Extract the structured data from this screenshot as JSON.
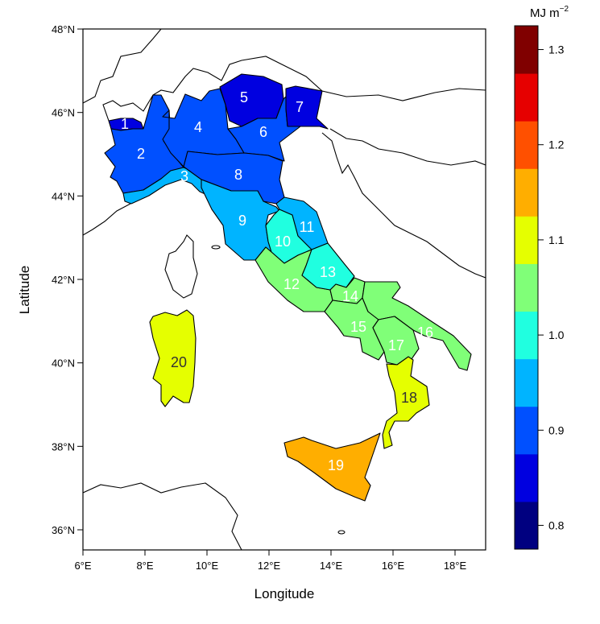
{
  "chart_data": {
    "type": "choropleth",
    "xlabel": "Longitude",
    "ylabel": "Latitude",
    "xlim": [
      6,
      19
    ],
    "ylim": [
      35.5,
      48
    ],
    "x_ticks": [
      {
        "v": 6,
        "label": "6°E"
      },
      {
        "v": 8,
        "label": "8°E"
      },
      {
        "v": 10,
        "label": "10°E"
      },
      {
        "v": 12,
        "label": "12°E"
      },
      {
        "v": 14,
        "label": "14°E"
      },
      {
        "v": 16,
        "label": "16°E"
      },
      {
        "v": 18,
        "label": "18°E"
      }
    ],
    "y_ticks": [
      {
        "v": 36,
        "label": "36°N"
      },
      {
        "v": 38,
        "label": "38°N"
      },
      {
        "v": 40,
        "label": "40°N"
      },
      {
        "v": 42,
        "label": "42°N"
      },
      {
        "v": 44,
        "label": "44°N"
      },
      {
        "v": 46,
        "label": "46°N"
      },
      {
        "v": 48,
        "label": "48°N"
      }
    ],
    "colorbar": {
      "title": "MJ m",
      "title_sup": "−2",
      "range": [
        0.775,
        1.325
      ],
      "colors": [
        "#000080",
        "#0000e0",
        "#0050ff",
        "#00b4ff",
        "#20ffe0",
        "#80ff78",
        "#e5ff00",
        "#ffae00",
        "#ff5000",
        "#e60000",
        "#800000"
      ],
      "ticks": [
        {
          "v": 0.8,
          "label": "0.8"
        },
        {
          "v": 0.9,
          "label": "0.9"
        },
        {
          "v": 1.0,
          "label": "1.0"
        },
        {
          "v": 1.1,
          "label": "1.1"
        },
        {
          "v": 1.2,
          "label": "1.2"
        },
        {
          "v": 1.3,
          "label": "1.3"
        }
      ]
    },
    "regions": [
      {
        "id": "1",
        "color": "#0000e0",
        "text": "#ffffff"
      },
      {
        "id": "2",
        "color": "#0050ff",
        "text": "#ffffff"
      },
      {
        "id": "3",
        "color": "#00b4ff",
        "text": "#ffffff"
      },
      {
        "id": "4",
        "color": "#0050ff",
        "text": "#ffffff"
      },
      {
        "id": "5",
        "color": "#0000e0",
        "text": "#ffffff"
      },
      {
        "id": "6",
        "color": "#0050ff",
        "text": "#ffffff"
      },
      {
        "id": "7",
        "color": "#0000e0",
        "text": "#ffffff"
      },
      {
        "id": "8",
        "color": "#0050ff",
        "text": "#ffffff"
      },
      {
        "id": "9",
        "color": "#00b4ff",
        "text": "#ffffff"
      },
      {
        "id": "10",
        "color": "#20ffe0",
        "text": "#ffffff"
      },
      {
        "id": "11",
        "color": "#00b4ff",
        "text": "#ffffff"
      },
      {
        "id": "12",
        "color": "#80ff78",
        "text": "#ffffff"
      },
      {
        "id": "13",
        "color": "#20ffe0",
        "text": "#ffffff"
      },
      {
        "id": "14",
        "color": "#80ff78",
        "text": "#ffffff"
      },
      {
        "id": "15",
        "color": "#80ff78",
        "text": "#ffffff"
      },
      {
        "id": "16",
        "color": "#80ff78",
        "text": "#ffffff"
      },
      {
        "id": "17",
        "color": "#80ff78",
        "text": "#ffffff"
      },
      {
        "id": "18",
        "color": "#e5ff00",
        "text": "#333333"
      },
      {
        "id": "19",
        "color": "#ffae00",
        "text": "#ffffff"
      },
      {
        "id": "20",
        "color": "#e5ff00",
        "text": "#333333"
      }
    ]
  }
}
